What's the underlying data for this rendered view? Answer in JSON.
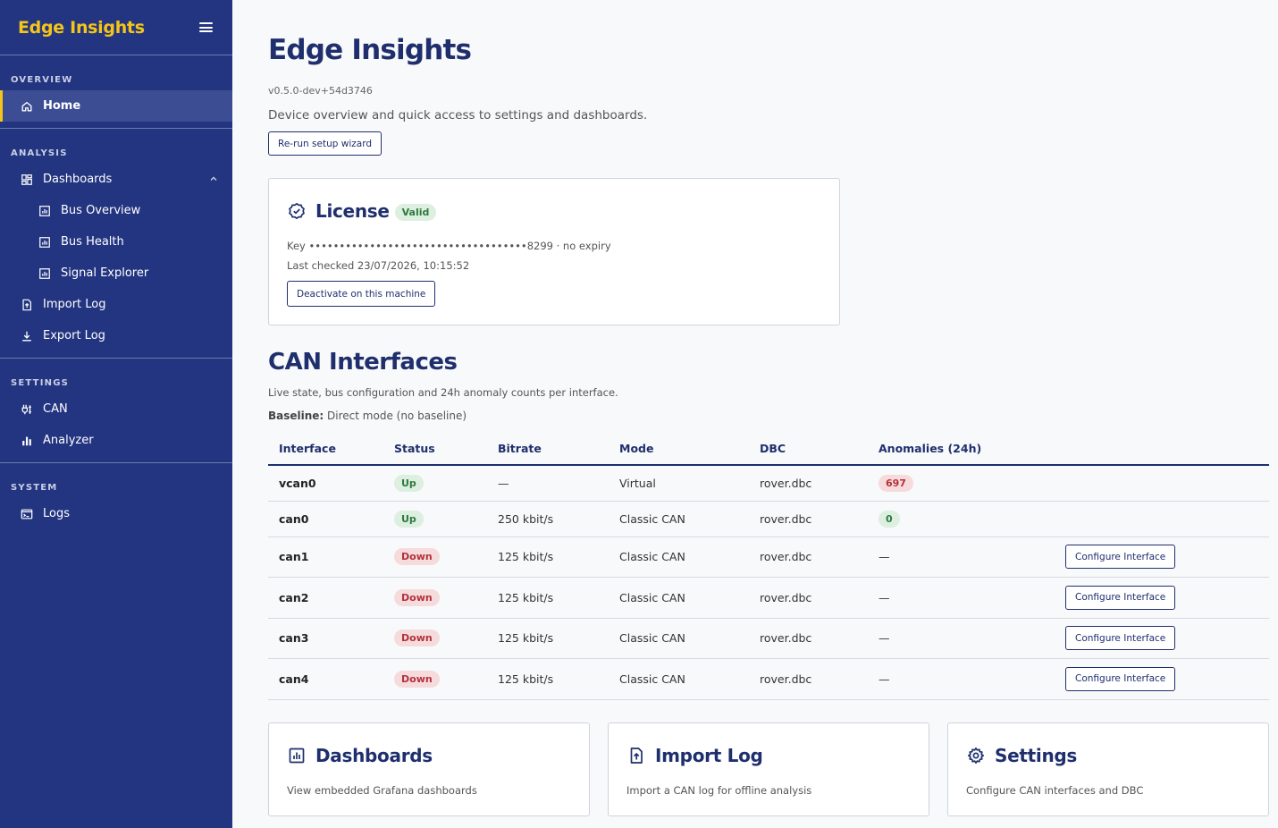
{
  "sidebar": {
    "brand": "Edge Insights",
    "sections": {
      "overview": {
        "label": "OVERVIEW",
        "items": {
          "home": "Home"
        }
      },
      "analysis": {
        "label": "ANALYSIS",
        "items": {
          "dashboards": "Dashboards",
          "bus_overview": "Bus Overview",
          "bus_health": "Bus Health",
          "signal_explorer": "Signal Explorer",
          "import_log": "Import Log",
          "export_log": "Export Log"
        }
      },
      "settings": {
        "label": "SETTINGS",
        "items": {
          "can": "CAN",
          "analyzer": "Analyzer"
        }
      },
      "system": {
        "label": "SYSTEM",
        "items": {
          "logs": "Logs"
        }
      }
    }
  },
  "main": {
    "title": "Edge Insights",
    "version": "v0.5.0-dev+54d3746",
    "description": "Device overview and quick access to settings and dashboards.",
    "rerun_button": "Re-run setup wizard"
  },
  "license": {
    "title": "License",
    "status": "Valid",
    "key_line": "Key ••••••••••••••••••••••••••••••••••••8299 · no expiry",
    "last_checked": "Last checked 23/07/2026, 10:15:52",
    "deactivate_button": "Deactivate on this machine"
  },
  "can": {
    "title": "CAN Interfaces",
    "description": "Live state, bus configuration and 24h anomaly counts per interface.",
    "baseline_label": "Baseline:",
    "baseline_value": " Direct mode (no baseline)",
    "columns": {
      "interface": "Interface",
      "status": "Status",
      "bitrate": "Bitrate",
      "mode": "Mode",
      "dbc": "DBC",
      "anomalies": "Anomalies (24h)"
    },
    "configure_label": "Configure Interface",
    "rows": [
      {
        "name": "vcan0",
        "status": "Up",
        "bitrate": "—",
        "mode": "Virtual",
        "dbc": "rover.dbc",
        "anomalies": "697"
      },
      {
        "name": "can0",
        "status": "Up",
        "bitrate": "250 kbit/s",
        "mode": "Classic CAN",
        "dbc": "rover.dbc",
        "anomalies": "0"
      },
      {
        "name": "can1",
        "status": "Down",
        "bitrate": "125 kbit/s",
        "mode": "Classic CAN",
        "dbc": "rover.dbc",
        "anomalies": "—"
      },
      {
        "name": "can2",
        "status": "Down",
        "bitrate": "125 kbit/s",
        "mode": "Classic CAN",
        "dbc": "rover.dbc",
        "anomalies": "—"
      },
      {
        "name": "can3",
        "status": "Down",
        "bitrate": "125 kbit/s",
        "mode": "Classic CAN",
        "dbc": "rover.dbc",
        "anomalies": "—"
      },
      {
        "name": "can4",
        "status": "Down",
        "bitrate": "125 kbit/s",
        "mode": "Classic CAN",
        "dbc": "rover.dbc",
        "anomalies": "—"
      }
    ]
  },
  "cards": {
    "dashboards": {
      "title": "Dashboards",
      "description": "View embedded Grafana dashboards"
    },
    "import_log": {
      "title": "Import Log",
      "description": "Import a CAN log for offline analysis"
    },
    "settings": {
      "title": "Settings",
      "description": "Configure CAN interfaces and DBC"
    }
  },
  "colors": {
    "sidebar_bg": "#233580",
    "brand": "#f5c518",
    "primary": "#1f2f6e",
    "success_bg": "#dcefe0",
    "success_fg": "#2f7a3e",
    "danger_bg": "#f6dbdd",
    "danger_fg": "#b3313b"
  },
  "icons": {
    "home": "home-icon",
    "dashboards": "dashboard-grid-icon",
    "chart": "bar-chart-icon",
    "import": "file-import-icon",
    "export": "download-icon",
    "can": "can-plug-icon",
    "analyzer": "bar-chart-icon",
    "logs": "terminal-icon",
    "license": "verified-badge-icon",
    "settings": "gear-icon"
  }
}
